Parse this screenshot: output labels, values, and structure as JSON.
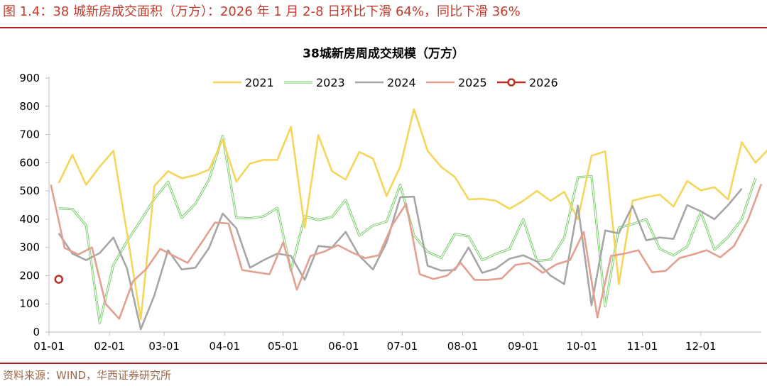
{
  "header": {
    "figure_title": "图 1.4：38 城新房成交面积（万方）：2026 年 1 月 2-8 日环比下滑 64%，同比下滑 36%"
  },
  "footer": {
    "source": "资料来源：WIND，华西证券研究所"
  },
  "colors": {
    "rule": "#b22222",
    "title": "#c0392b",
    "axis": "#bfbfbf"
  },
  "chart_data": {
    "type": "line",
    "title": "38城新房周成交规模（万方）",
    "xlabel": "",
    "ylabel": "",
    "ylim": [
      0,
      900
    ],
    "yticks": [
      0,
      100,
      200,
      300,
      400,
      500,
      600,
      700,
      800,
      900
    ],
    "xlim": [
      0,
      365
    ],
    "xticks": [
      {
        "label": "01-01",
        "day": 0
      },
      {
        "label": "02-01",
        "day": 31
      },
      {
        "label": "03-01",
        "day": 59
      },
      {
        "label": "04-01",
        "day": 90
      },
      {
        "label": "05-01",
        "day": 120
      },
      {
        "label": "06-01",
        "day": 151
      },
      {
        "label": "07-01",
        "day": 181
      },
      {
        "label": "08-01",
        "day": 212
      },
      {
        "label": "09-01",
        "day": 243
      },
      {
        "label": "10-01",
        "day": 273
      },
      {
        "label": "11-01",
        "day": 304
      },
      {
        "label": "12-01",
        "day": 334
      }
    ],
    "legend_position": "top",
    "series": [
      {
        "name": "2021",
        "color": "#f5d55a",
        "style": "solid",
        "start_day": 5,
        "step_days": 7,
        "values": [
          528,
          628,
          522,
          586,
          642,
          350,
          45,
          518,
          570,
          545,
          556,
          575,
          682,
          533,
          597,
          610,
          610,
          727,
          370,
          698,
          570,
          540,
          638,
          615,
          482,
          587,
          790,
          642,
          585,
          549,
          470,
          472,
          465,
          437,
          465,
          500,
          465,
          497,
          400,
          625,
          640,
          170,
          465,
          478,
          487,
          445,
          535,
          502,
          513,
          470,
          673,
          600,
          650
        ]
      },
      {
        "name": "2023",
        "color": "#7ccf6e",
        "style": "double",
        "start_day": 5,
        "step_days": 7,
        "values": [
          438,
          436,
          378,
          32,
          238,
          322,
          395,
          472,
          532,
          405,
          455,
          540,
          695,
          405,
          403,
          410,
          440,
          218,
          410,
          397,
          408,
          468,
          342,
          377,
          392,
          522,
          343,
          284,
          263,
          348,
          340,
          255,
          277,
          295,
          400,
          252,
          257,
          334,
          548,
          552,
          92,
          370,
          382,
          400,
          295,
          272,
          303,
          425,
          292,
          337,
          400,
          545
        ]
      },
      {
        "name": "2024",
        "color": "#a6a6a6",
        "style": "solid",
        "start_day": 5,
        "step_days": 7,
        "values": [
          350,
          278,
          255,
          280,
          335,
          225,
          10,
          130,
          290,
          222,
          228,
          298,
          420,
          368,
          228,
          255,
          278,
          270,
          185,
          305,
          300,
          355,
          270,
          222,
          318,
          478,
          480,
          235,
          218,
          220,
          300,
          210,
          225,
          260,
          272,
          250,
          200,
          170,
          448,
          95,
          360,
          350,
          447,
          325,
          335,
          330,
          450,
          428,
          400,
          450,
          508
        ]
      },
      {
        "name": "2025",
        "color": "#e3a090",
        "style": "solid",
        "start_day": 1,
        "step_days": 7,
        "values": [
          522,
          298,
          275,
          300,
          100,
          47,
          180,
          225,
          295,
          270,
          245,
          315,
          388,
          385,
          220,
          212,
          205,
          318,
          150,
          270,
          285,
          308,
          283,
          262,
          272,
          380,
          455,
          205,
          188,
          200,
          245,
          185,
          185,
          190,
          238,
          245,
          210,
          240,
          255,
          355,
          52,
          270,
          278,
          290,
          212,
          217,
          262,
          275,
          290,
          265,
          305,
          395,
          525
        ]
      },
      {
        "name": "2026",
        "color": "#b5322a",
        "style": "marker",
        "start_day": 5,
        "step_days": 7,
        "values": [
          187
        ]
      }
    ]
  }
}
